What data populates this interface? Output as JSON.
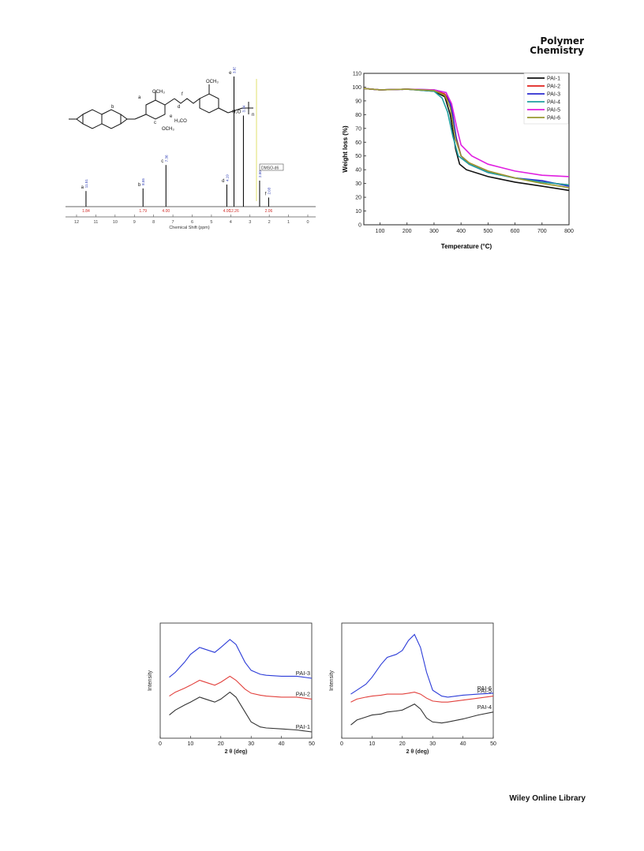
{
  "header": {
    "journal_line1": "Polymer",
    "journal_line2": "Chemistry"
  },
  "footer": {
    "text": "Wiley Online Library"
  },
  "nmr": {
    "xlabel": "Chemical Shift (ppm)",
    "ticks": [
      "12",
      "11",
      "10",
      "9",
      "8",
      "7",
      "6",
      "5",
      "4",
      "3",
      "2",
      "1",
      "0"
    ],
    "solvent": "DMSO-d6",
    "water": "H2O",
    "peaks": [
      {
        "ppm": 11.51,
        "height": 0.12,
        "label": "a",
        "shift": "11.51",
        "integral": "1.84"
      },
      {
        "ppm": 8.55,
        "height": 0.14,
        "label": "b",
        "shift": "8.55",
        "integral": "1.79"
      },
      {
        "ppm": 7.36,
        "height": 0.32,
        "label": "c",
        "shift": "7.36",
        "integral": "4.00"
      },
      {
        "ppm": 4.2,
        "height": 0.17,
        "label": "d",
        "shift": "4.19",
        "integral": "4.00"
      },
      {
        "ppm": 3.83,
        "height": 1.0,
        "label": "e",
        "shift": "3.83",
        "integral": "12.26"
      },
      {
        "ppm": 3.34,
        "height": 0.7,
        "label": "H2O",
        "shift": "3.34",
        "integral": ""
      },
      {
        "ppm": 2.5,
        "height": 0.2,
        "label": "",
        "shift": "2.50",
        "integral": ""
      },
      {
        "ppm": 2.03,
        "height": 0.07,
        "label": "f",
        "shift": "2.03",
        "integral": "2.06"
      }
    ],
    "structure_labels": [
      "a",
      "b",
      "c",
      "d",
      "e",
      "f",
      "n"
    ]
  },
  "tga": {
    "chart_data": {
      "type": "line",
      "xlabel": "Temperature (°C)",
      "ylabel": "Weight loss (%)",
      "xlim": [
        40,
        800
      ],
      "ylim": [
        0,
        110
      ],
      "xticks": [
        100,
        200,
        300,
        400,
        500,
        600,
        700,
        800
      ],
      "yticks": [
        0,
        10,
        20,
        30,
        40,
        50,
        60,
        70,
        80,
        90,
        100,
        110
      ],
      "legend_placement": "top-right",
      "series": [
        {
          "name": "PAI-1",
          "color": "#111111",
          "x": [
            40,
            100,
            200,
            300,
            340,
            360,
            380,
            395,
            420,
            500,
            600,
            700,
            800
          ],
          "y": [
            99,
            98,
            98.5,
            97,
            93,
            80,
            55,
            44,
            40,
            35,
            31,
            28,
            25
          ]
        },
        {
          "name": "PAI-2",
          "color": "#e0201c",
          "x": [
            40,
            100,
            200,
            300,
            340,
            360,
            380,
            400,
            430,
            500,
            600,
            700,
            800
          ],
          "y": [
            99,
            98,
            98.5,
            97.5,
            95,
            88,
            65,
            50,
            45,
            39,
            34,
            31,
            29
          ]
        },
        {
          "name": "PAI-3",
          "color": "#2c2cd0",
          "x": [
            40,
            100,
            200,
            300,
            345,
            365,
            385,
            400,
            430,
            500,
            600,
            700,
            800
          ],
          "y": [
            99,
            98,
            98.5,
            98,
            96,
            85,
            60,
            50,
            44,
            38,
            34,
            32,
            28
          ]
        },
        {
          "name": "PAI-4",
          "color": "#20a0a0",
          "x": [
            40,
            100,
            200,
            300,
            330,
            350,
            370,
            390,
            430,
            500,
            600,
            700,
            800
          ],
          "y": [
            99,
            98,
            98.5,
            97,
            92,
            82,
            64,
            50,
            44,
            38,
            34,
            31,
            29
          ]
        },
        {
          "name": "PAI-5",
          "color": "#e020e0",
          "x": [
            40,
            100,
            200,
            300,
            345,
            365,
            385,
            400,
            440,
            500,
            600,
            700,
            800
          ],
          "y": [
            99,
            98,
            98.5,
            98,
            96,
            88,
            70,
            58,
            50,
            44,
            39,
            36,
            35
          ]
        },
        {
          "name": "PAI-6",
          "color": "#9a9a30",
          "x": [
            40,
            100,
            200,
            300,
            340,
            360,
            380,
            400,
            430,
            500,
            600,
            700,
            800
          ],
          "y": [
            99,
            98,
            98.5,
            97.5,
            94,
            85,
            62,
            50,
            45,
            39,
            34,
            30,
            27
          ]
        }
      ]
    }
  },
  "xrd": {
    "chart_data": [
      {
        "type": "line",
        "xlabel": "2 θ (deg)",
        "ylabel": "Intensity",
        "xlim": [
          0,
          50
        ],
        "xticks": [
          0,
          10,
          20,
          30,
          40,
          50
        ],
        "series": [
          {
            "name": "PAI-3",
            "color": "#2c3cd8",
            "x": [
              3,
              5,
              8,
              10,
              13,
              16,
              18,
              20,
              23,
              25,
              28,
              30,
              33,
              35,
              40,
              45,
              50
            ],
            "y": [
              0.55,
              0.6,
              0.7,
              0.78,
              0.85,
              0.82,
              0.8,
              0.85,
              0.93,
              0.88,
              0.7,
              0.62,
              0.58,
              0.57,
              0.56,
              0.56,
              0.54
            ]
          },
          {
            "name": "PAI-2",
            "color": "#e2403c",
            "x": [
              3,
              5,
              8,
              10,
              13,
              16,
              18,
              20,
              23,
              25,
              28,
              30,
              33,
              35,
              40,
              45,
              50
            ],
            "y": [
              0.36,
              0.4,
              0.44,
              0.47,
              0.52,
              0.49,
              0.47,
              0.5,
              0.56,
              0.52,
              0.43,
              0.39,
              0.37,
              0.36,
              0.35,
              0.35,
              0.33
            ]
          },
          {
            "name": "PAI-1",
            "color": "#333333",
            "x": [
              3,
              5,
              8,
              10,
              13,
              16,
              18,
              20,
              23,
              25,
              28,
              30,
              33,
              35,
              40,
              45,
              50
            ],
            "y": [
              0.17,
              0.22,
              0.27,
              0.3,
              0.35,
              0.32,
              0.3,
              0.33,
              0.4,
              0.35,
              0.2,
              0.1,
              0.05,
              0.04,
              0.03,
              0.02,
              0.0
            ]
          }
        ]
      },
      {
        "type": "line",
        "xlabel": "2 θ (deg)",
        "ylabel": "Intensity",
        "xlim": [
          0,
          50
        ],
        "xticks": [
          0,
          10,
          20,
          30,
          40,
          50
        ],
        "series": [
          {
            "name": "PAI-6",
            "color": "#2c3cd8",
            "x": [
              3,
              5,
              8,
              10,
              13,
              15,
              18,
              20,
              22,
              24,
              26,
              28,
              30,
              33,
              35,
              40,
              45,
              50
            ],
            "y": [
              0.38,
              0.42,
              0.48,
              0.55,
              0.68,
              0.75,
              0.78,
              0.82,
              0.92,
              0.98,
              0.85,
              0.6,
              0.42,
              0.36,
              0.35,
              0.37,
              0.38,
              0.39
            ]
          },
          {
            "name": "PAI-5",
            "color": "#e2403c",
            "x": [
              3,
              5,
              8,
              10,
              13,
              15,
              18,
              20,
              22,
              24,
              26,
              28,
              30,
              33,
              35,
              40,
              45,
              50
            ],
            "y": [
              0.3,
              0.33,
              0.35,
              0.36,
              0.37,
              0.38,
              0.38,
              0.38,
              0.39,
              0.4,
              0.38,
              0.34,
              0.31,
              0.3,
              0.3,
              0.32,
              0.34,
              0.36
            ]
          },
          {
            "name": "PAI-4",
            "color": "#333333",
            "x": [
              3,
              5,
              8,
              10,
              13,
              15,
              18,
              20,
              22,
              24,
              26,
              28,
              30,
              33,
              35,
              40,
              45,
              50
            ],
            "y": [
              0.07,
              0.12,
              0.15,
              0.17,
              0.18,
              0.2,
              0.21,
              0.22,
              0.25,
              0.28,
              0.23,
              0.14,
              0.1,
              0.09,
              0.1,
              0.13,
              0.17,
              0.2
            ]
          }
        ]
      }
    ]
  }
}
